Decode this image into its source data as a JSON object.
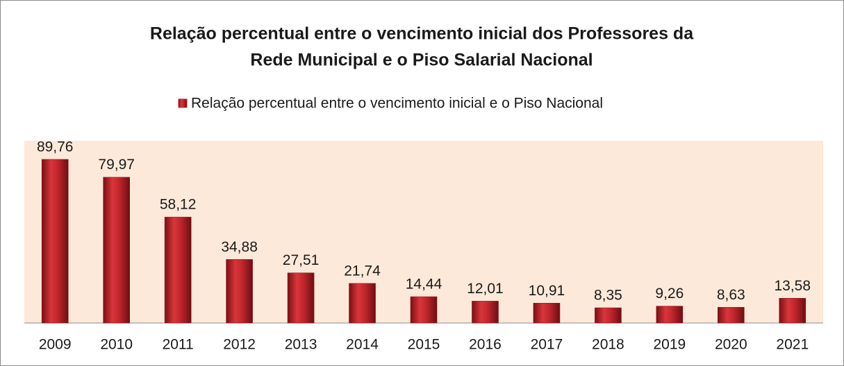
{
  "chart_data": {
    "type": "bar",
    "title": [
      "Relação percentual entre o vencimento inicial dos Professores da",
      "Rede Municipal e o Piso Salarial  Nacional"
    ],
    "categories": [
      "2009",
      "2010",
      "2011",
      "2012",
      "2013",
      "2014",
      "2015",
      "2016",
      "2017",
      "2018",
      "2019",
      "2020",
      "2021"
    ],
    "series": [
      {
        "name": "Relação percentual entre o vencimento inicial e o Piso  Nacional",
        "color": "#c0262c",
        "values": [
          89.76,
          79.97,
          58.12,
          34.88,
          27.51,
          21.74,
          14.44,
          12.01,
          10.91,
          8.35,
          9.26,
          8.63,
          13.58
        ],
        "value_labels": [
          "89,76",
          "79,97",
          "58,12",
          "34,88",
          "27,51",
          "21,74",
          "14,44",
          "12,01",
          "10,91",
          "8,35",
          "9,26",
          "8,63",
          "13,58"
        ]
      }
    ],
    "ylim": [
      0,
      100
    ],
    "legend": "top",
    "plot_background": "#fde9d9"
  }
}
